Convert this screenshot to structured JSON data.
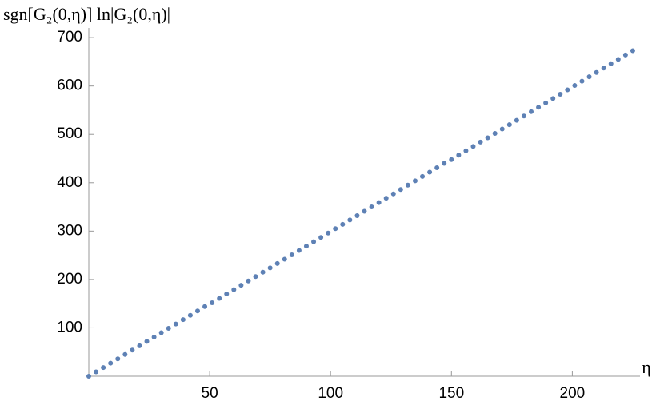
{
  "chart_data": {
    "type": "scatter",
    "x_label": "η",
    "y_label": "sgn[G₂(0,η)] ln|G₂(0,η)|",
    "xlim": [
      0,
      228
    ],
    "ylim": [
      0,
      720
    ],
    "xticks": [
      50,
      100,
      150,
      200
    ],
    "yticks": [
      100,
      200,
      300,
      400,
      500,
      600,
      700
    ],
    "color": "#5e81b5",
    "x": [
      0,
      3,
      6,
      9,
      12,
      15,
      18,
      21,
      24,
      27,
      30,
      33,
      36,
      39,
      42,
      45,
      48,
      51,
      54,
      57,
      60,
      63,
      66,
      69,
      72,
      75,
      78,
      81,
      84,
      87,
      90,
      93,
      96,
      99,
      102,
      105,
      108,
      111,
      114,
      117,
      120,
      123,
      126,
      129,
      132,
      135,
      138,
      141,
      144,
      147,
      150,
      153,
      156,
      159,
      162,
      165,
      168,
      171,
      174,
      177,
      180,
      183,
      186,
      189,
      192,
      195,
      198,
      201,
      204,
      207,
      210,
      213,
      216,
      219,
      222,
      225
    ],
    "values": [
      0,
      9,
      18,
      27,
      36,
      45,
      54,
      63,
      72,
      81,
      90,
      99,
      108,
      117,
      126,
      135,
      144,
      152,
      161,
      170,
      179,
      188,
      197,
      206,
      215,
      224,
      233,
      242,
      251,
      260,
      269,
      278,
      287,
      296,
      305,
      314,
      323,
      332,
      341,
      350,
      359,
      368,
      377,
      386,
      395,
      404,
      413,
      422,
      431,
      440,
      448,
      457,
      466,
      475,
      484,
      493,
      502,
      511,
      520,
      529,
      538,
      547,
      556,
      565,
      574,
      583,
      592,
      601,
      610,
      619,
      628,
      637,
      646,
      655,
      664,
      673
    ]
  }
}
